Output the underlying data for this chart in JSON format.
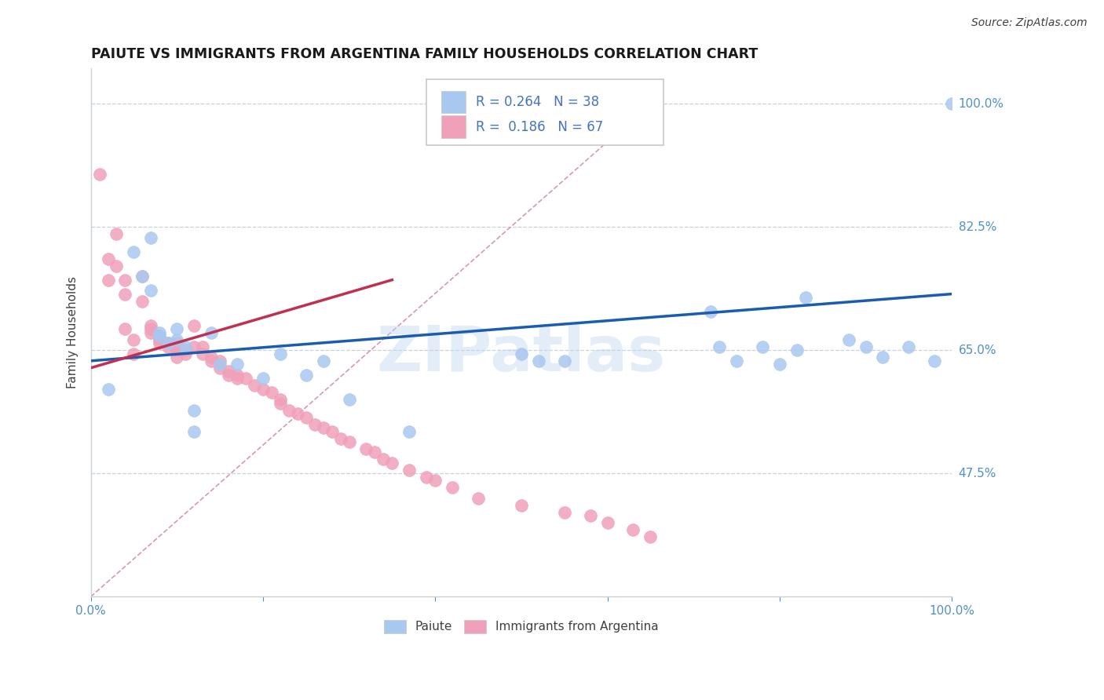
{
  "title": "PAIUTE VS IMMIGRANTS FROM ARGENTINA FAMILY HOUSEHOLDS CORRELATION CHART",
  "source": "Source: ZipAtlas.com",
  "ylabel": "Family Households",
  "legend_label1": "Paiute",
  "legend_label2": "Immigrants from Argentina",
  "R1": 0.264,
  "N1": 38,
  "R2": 0.186,
  "N2": 67,
  "xlim": [
    0.0,
    1.0
  ],
  "ylim": [
    0.3,
    1.05
  ],
  "yticks": [
    0.475,
    0.65,
    0.825,
    1.0
  ],
  "ytick_labels": [
    "47.5%",
    "65.0%",
    "82.5%",
    "100.0%"
  ],
  "color_blue": "#A8C8F0",
  "color_pink": "#F0A0B8",
  "color_trendline_blue": "#1A5CB0",
  "color_trendline_pink": "#C03050",
  "color_diagonal": "#D08090",
  "watermark": "ZIPatlas",
  "blue_points_x": [
    0.02,
    0.05,
    0.06,
    0.07,
    0.07,
    0.08,
    0.08,
    0.09,
    0.1,
    0.1,
    0.11,
    0.12,
    0.12,
    0.14,
    0.15,
    0.17,
    0.2,
    0.22,
    0.25,
    0.27,
    0.3,
    0.37,
    0.5,
    0.52,
    0.55,
    0.72,
    0.73,
    0.75,
    0.78,
    0.8,
    0.82,
    0.83,
    0.88,
    0.9,
    0.92,
    0.95,
    0.98,
    1.0
  ],
  "blue_points_y": [
    0.595,
    0.79,
    0.755,
    0.81,
    0.735,
    0.675,
    0.67,
    0.66,
    0.68,
    0.665,
    0.655,
    0.565,
    0.535,
    0.675,
    0.63,
    0.63,
    0.61,
    0.645,
    0.615,
    0.635,
    0.58,
    0.535,
    0.645,
    0.635,
    0.635,
    0.705,
    0.655,
    0.635,
    0.655,
    0.63,
    0.65,
    0.725,
    0.665,
    0.655,
    0.64,
    0.655,
    0.635,
    1.0
  ],
  "pink_points_x": [
    0.01,
    0.02,
    0.02,
    0.03,
    0.03,
    0.04,
    0.04,
    0.04,
    0.05,
    0.05,
    0.06,
    0.06,
    0.07,
    0.07,
    0.07,
    0.08,
    0.08,
    0.08,
    0.09,
    0.09,
    0.1,
    0.1,
    0.1,
    0.1,
    0.11,
    0.11,
    0.12,
    0.12,
    0.13,
    0.13,
    0.14,
    0.14,
    0.15,
    0.15,
    0.16,
    0.16,
    0.17,
    0.17,
    0.18,
    0.19,
    0.2,
    0.21,
    0.22,
    0.22,
    0.23,
    0.24,
    0.25,
    0.26,
    0.27,
    0.28,
    0.29,
    0.3,
    0.32,
    0.33,
    0.34,
    0.35,
    0.37,
    0.39,
    0.4,
    0.42,
    0.45,
    0.5,
    0.55,
    0.58,
    0.6,
    0.63,
    0.65
  ],
  "pink_points_y": [
    0.9,
    0.78,
    0.75,
    0.815,
    0.77,
    0.75,
    0.73,
    0.68,
    0.665,
    0.645,
    0.755,
    0.72,
    0.685,
    0.68,
    0.675,
    0.67,
    0.665,
    0.66,
    0.66,
    0.655,
    0.66,
    0.655,
    0.65,
    0.64,
    0.65,
    0.645,
    0.685,
    0.655,
    0.655,
    0.645,
    0.64,
    0.635,
    0.635,
    0.625,
    0.62,
    0.615,
    0.615,
    0.61,
    0.61,
    0.6,
    0.595,
    0.59,
    0.58,
    0.575,
    0.565,
    0.56,
    0.555,
    0.545,
    0.54,
    0.535,
    0.525,
    0.52,
    0.51,
    0.505,
    0.495,
    0.49,
    0.48,
    0.47,
    0.465,
    0.455,
    0.44,
    0.43,
    0.42,
    0.415,
    0.405,
    0.395,
    0.385
  ],
  "blue_trendline": [
    0.0,
    1.0,
    0.635,
    0.73
  ],
  "pink_trendline": [
    0.0,
    0.35,
    0.625,
    0.75
  ],
  "diag_line": [
    0.0,
    0.65,
    0.3,
    1.0
  ]
}
